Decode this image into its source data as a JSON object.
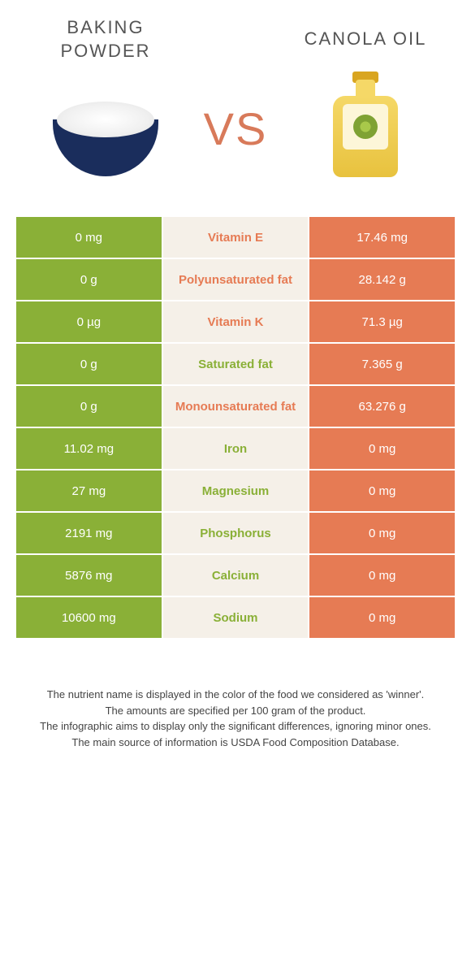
{
  "foods": {
    "left": {
      "title": "BAKING POWDER"
    },
    "right": {
      "title": "CANOLA OIL"
    }
  },
  "vs_label": "VS",
  "colors": {
    "left_bg": "#8ab037",
    "mid_bg": "#f5f0e8",
    "right_bg": "#e67b54",
    "green": "#8ab037",
    "orange": "#e67b54"
  },
  "table": {
    "rows": [
      {
        "left": "0 mg",
        "name": "Vitamin E",
        "right": "17.46 mg",
        "winner": "right"
      },
      {
        "left": "0 g",
        "name": "Polyunsaturated fat",
        "right": "28.142 g",
        "winner": "right"
      },
      {
        "left": "0 µg",
        "name": "Vitamin K",
        "right": "71.3 µg",
        "winner": "right"
      },
      {
        "left": "0 g",
        "name": "Saturated fat",
        "right": "7.365 g",
        "winner": "left"
      },
      {
        "left": "0 g",
        "name": "Monounsaturated fat",
        "right": "63.276 g",
        "winner": "right"
      },
      {
        "left": "11.02 mg",
        "name": "Iron",
        "right": "0 mg",
        "winner": "left"
      },
      {
        "left": "27 mg",
        "name": "Magnesium",
        "right": "0 mg",
        "winner": "left"
      },
      {
        "left": "2191 mg",
        "name": "Phosphorus",
        "right": "0 mg",
        "winner": "left"
      },
      {
        "left": "5876 mg",
        "name": "Calcium",
        "right": "0 mg",
        "winner": "left"
      },
      {
        "left": "10600 mg",
        "name": "Sodium",
        "right": "0 mg",
        "winner": "left"
      }
    ]
  },
  "footer": {
    "line1": "The nutrient name is displayed in the color of the food we considered as 'winner'.",
    "line2": "The amounts are specified per 100 gram of the product.",
    "line3": "The infographic aims to display only the significant differences, ignoring minor ones.",
    "line4": "The main source of information is USDA Food Composition Database."
  }
}
